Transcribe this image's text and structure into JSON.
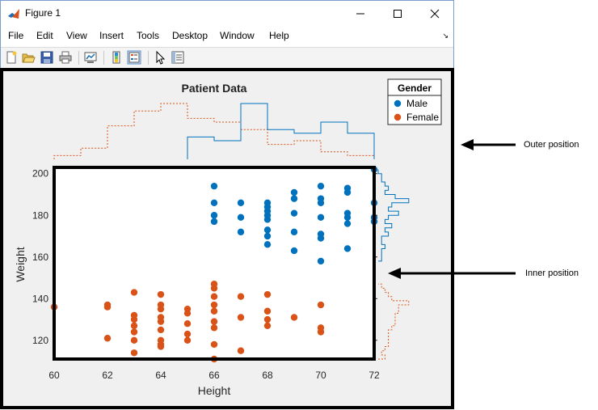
{
  "window": {
    "title": "Figure 1",
    "controls": [
      "minimize",
      "maximize",
      "close"
    ]
  },
  "menu": {
    "items": [
      "File",
      "Edit",
      "View",
      "Insert",
      "Tools",
      "Desktop",
      "Window",
      "Help"
    ],
    "dock_arrow": "↘"
  },
  "toolbar": {
    "icons": [
      "new-figure-icon",
      "open-file-icon",
      "save-icon",
      "print-icon",
      "link-plot-icon",
      "insert-colorbar-icon",
      "insert-legend-icon",
      "edit-plot-arrow-icon",
      "property-inspector-icon"
    ]
  },
  "chart_data": {
    "type": "scatter",
    "title": "Patient Data",
    "xlabel": "Height",
    "ylabel": "Weight",
    "xlim": [
      60,
      72
    ],
    "ylim": [
      111,
      203
    ],
    "xticks": [
      60,
      62,
      64,
      66,
      68,
      70,
      72
    ],
    "yticks": [
      120,
      140,
      160,
      180,
      200
    ],
    "legend": {
      "title": "Gender",
      "position": "top-right",
      "entries": [
        "Male",
        "Female"
      ]
    },
    "series": [
      {
        "name": "Male",
        "color": "#0072BD",
        "points": [
          [
            66,
            194
          ],
          [
            66,
            186
          ],
          [
            66,
            180
          ],
          [
            66,
            177
          ],
          [
            67,
            186
          ],
          [
            67,
            179
          ],
          [
            67,
            172
          ],
          [
            68,
            186
          ],
          [
            68,
            184
          ],
          [
            68,
            182
          ],
          [
            68,
            180
          ],
          [
            68,
            178
          ],
          [
            68,
            173
          ],
          [
            68,
            170
          ],
          [
            68,
            166
          ],
          [
            69,
            191
          ],
          [
            69,
            188
          ],
          [
            69,
            181
          ],
          [
            69,
            172
          ],
          [
            69,
            163
          ],
          [
            70,
            194
          ],
          [
            70,
            188
          ],
          [
            70,
            186
          ],
          [
            70,
            179
          ],
          [
            70,
            171
          ],
          [
            70,
            169
          ],
          [
            70,
            158
          ],
          [
            71,
            193
          ],
          [
            71,
            191
          ],
          [
            71,
            181
          ],
          [
            71,
            179
          ],
          [
            71,
            176
          ],
          [
            71,
            164
          ],
          [
            72,
            202
          ],
          [
            72,
            186
          ],
          [
            72,
            179
          ],
          [
            72,
            177
          ]
        ]
      },
      {
        "name": "Female",
        "color": "#D95319",
        "points": [
          [
            60,
            136
          ],
          [
            62,
            137
          ],
          [
            62,
            136
          ],
          [
            62,
            121
          ],
          [
            63,
            143
          ],
          [
            63,
            132
          ],
          [
            63,
            130
          ],
          [
            63,
            127
          ],
          [
            63,
            124
          ],
          [
            63,
            120
          ],
          [
            63,
            114
          ],
          [
            64,
            142
          ],
          [
            64,
            137
          ],
          [
            64,
            135
          ],
          [
            64,
            131
          ],
          [
            64,
            129
          ],
          [
            64,
            125
          ],
          [
            64,
            120
          ],
          [
            64,
            118
          ],
          [
            64,
            117
          ],
          [
            65,
            135
          ],
          [
            65,
            133
          ],
          [
            65,
            128
          ],
          [
            65,
            123
          ],
          [
            65,
            120
          ],
          [
            66,
            147
          ],
          [
            66,
            145
          ],
          [
            66,
            141
          ],
          [
            66,
            137
          ],
          [
            66,
            134
          ],
          [
            66,
            129
          ],
          [
            66,
            126
          ],
          [
            66,
            118
          ],
          [
            66,
            111
          ],
          [
            67,
            141
          ],
          [
            67,
            131
          ],
          [
            67,
            115
          ],
          [
            68,
            142
          ],
          [
            68,
            134
          ],
          [
            68,
            130
          ],
          [
            68,
            127
          ],
          [
            69,
            131
          ],
          [
            70,
            137
          ],
          [
            70,
            126
          ],
          [
            70,
            124
          ]
        ]
      }
    ],
    "histograms": {
      "top_male_edges": [
        65,
        66,
        67,
        68,
        69,
        70,
        71,
        72
      ],
      "top_male_counts": [
        6,
        5,
        15,
        8,
        7,
        10,
        7
      ],
      "top_female_edges": [
        60,
        61,
        62,
        63,
        64,
        65,
        66,
        67,
        68,
        69,
        70,
        71,
        72
      ],
      "top_female_counts": [
        1,
        3,
        9,
        13,
        15,
        11,
        10,
        8,
        4,
        5,
        2,
        1
      ],
      "right_male_edges": [
        158,
        160,
        162,
        164,
        166,
        168,
        170,
        172,
        174,
        176,
        178,
        180,
        182,
        184,
        186,
        188,
        190,
        192,
        194,
        196,
        198,
        200,
        202
      ],
      "right_male_counts": [
        1,
        1,
        1,
        2,
        1,
        1,
        3,
        2,
        4,
        2,
        3,
        6,
        3,
        4,
        9,
        5,
        2,
        3,
        2,
        1,
        1,
        0
      ],
      "right_female_edges": [
        111,
        113,
        115,
        117,
        119,
        121,
        123,
        125,
        127,
        129,
        131,
        133,
        135,
        137,
        139,
        141,
        143,
        145,
        147
      ],
      "right_female_counts": [
        2,
        1,
        2,
        3,
        3,
        3,
        3,
        4,
        5,
        5,
        5,
        6,
        6,
        9,
        4,
        3,
        2,
        1
      ]
    }
  },
  "annotations": {
    "outer": "Outer position",
    "inner": "Inner position"
  }
}
